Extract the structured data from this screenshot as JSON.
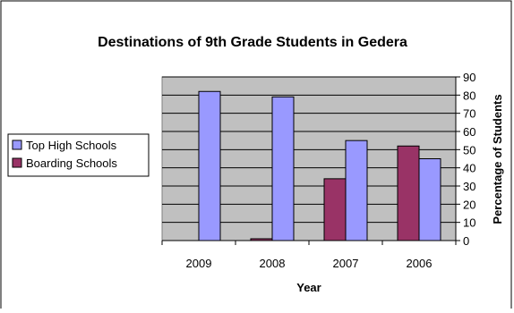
{
  "chart_data": {
    "type": "bar",
    "title": "Destinations of 9th Grade Students in Gedera",
    "xlabel": "Year",
    "ylabel": "Percentage of Students",
    "categories": [
      "2009",
      "2008",
      "2007",
      "2006"
    ],
    "series": [
      {
        "name": "Boarding Schools",
        "color": "#993366",
        "values": [
          0,
          1,
          34,
          52
        ]
      },
      {
        "name": "Top High Schools",
        "color": "#9999ff",
        "values": [
          82,
          79,
          55,
          45
        ]
      }
    ],
    "legend_order": [
      "Top High Schools",
      "Boarding Schools"
    ],
    "ylim": [
      0,
      90
    ],
    "y_ticks": [
      0,
      10,
      20,
      30,
      40,
      50,
      60,
      70,
      80,
      90
    ],
    "y_axis_side": "right",
    "legend_position": "left",
    "grid": true,
    "plot_background": "#c0c0c0"
  }
}
